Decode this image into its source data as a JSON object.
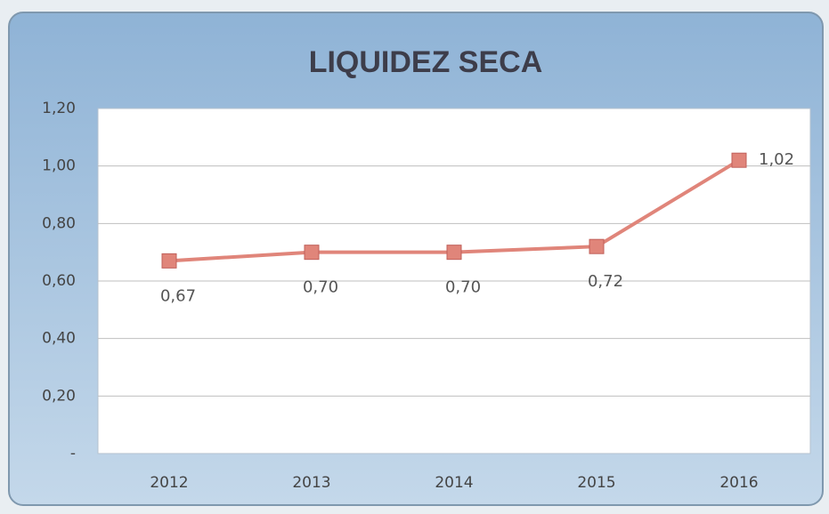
{
  "chart_data": {
    "type": "line",
    "title": "LIQUIDEZ SECA",
    "categories": [
      "2012",
      "2013",
      "2014",
      "2015",
      "2016"
    ],
    "series": [
      {
        "name": "Liquidez seca",
        "color": "#e0857a",
        "values": [
          0.67,
          0.7,
          0.7,
          0.72,
          1.02
        ],
        "value_labels": [
          "0,67",
          "0,70",
          "0,70",
          "0,72",
          "1,02"
        ]
      }
    ],
    "ylim": [
      0,
      1.2
    ],
    "yticks": [
      {
        "value": 0,
        "label": "-"
      },
      {
        "value": 0.2,
        "label": "0,20"
      },
      {
        "value": 0.4,
        "label": "0,40"
      },
      {
        "value": 0.6,
        "label": "0,60"
      },
      {
        "value": 0.8,
        "label": "0,80"
      },
      {
        "value": 1.0,
        "label": "1,00"
      },
      {
        "value": 1.2,
        "label": "1,20"
      }
    ],
    "grid": true,
    "legend": false
  }
}
